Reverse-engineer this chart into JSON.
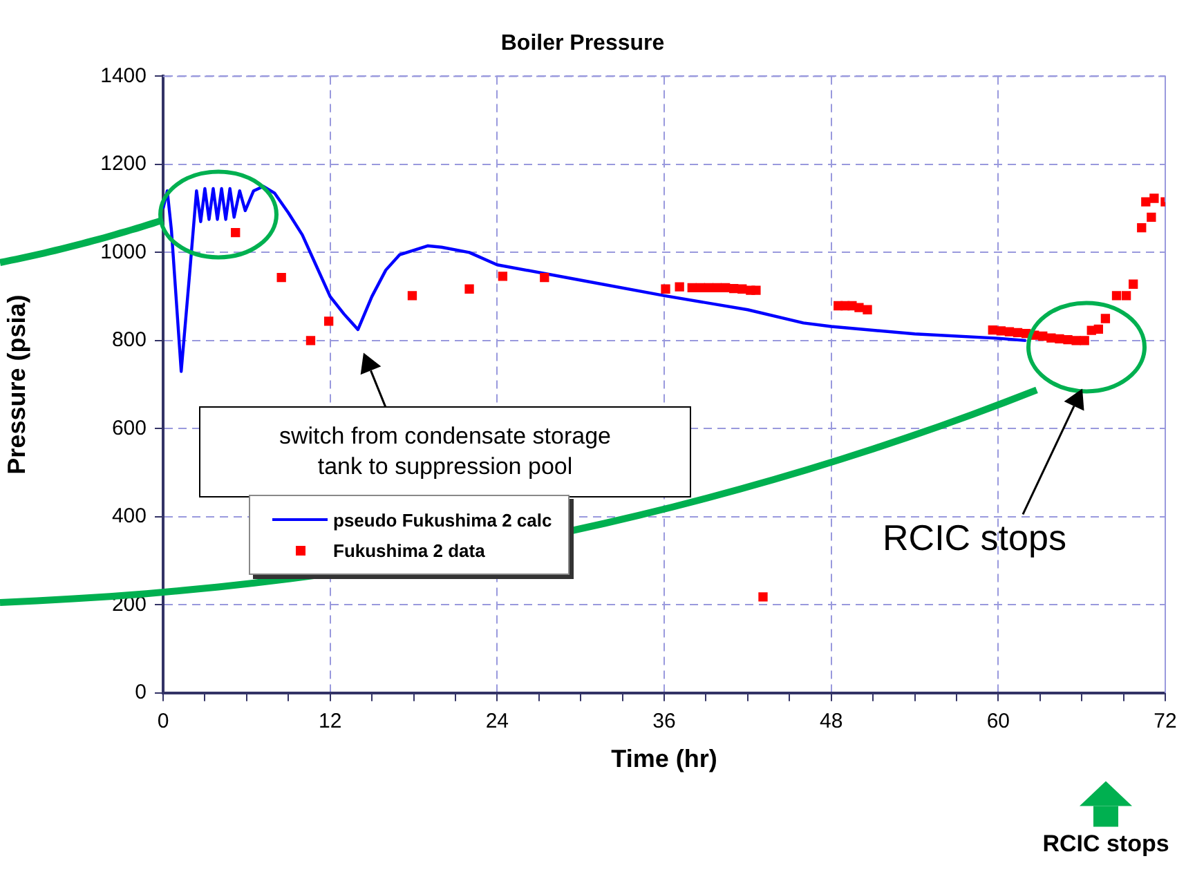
{
  "chart_data": {
    "type": "line",
    "title": "Boiler Pressure",
    "xlabel": "Time (hr)",
    "ylabel": "Pressure (psia)",
    "xlim": [
      0,
      72
    ],
    "xticks": [
      0,
      {
        "value": 3,
        "label": null
      },
      {
        "value": 6,
        "label": null
      },
      {
        "value": 9,
        "label": null
      },
      12,
      {
        "value": 15,
        "label": null
      },
      {
        "value": 18,
        "label": null
      },
      {
        "value": 21,
        "label": null
      },
      24,
      {
        "value": 27,
        "label": null
      },
      {
        "value": 30,
        "label": null
      },
      {
        "value": 33,
        "label": null
      },
      36,
      {
        "value": 39,
        "label": null
      },
      {
        "value": 42,
        "label": null
      },
      {
        "value": 45,
        "label": null
      },
      48,
      {
        "value": 51,
        "label": null
      },
      {
        "value": 54,
        "label": null
      },
      {
        "value": 57,
        "label": null
      },
      60,
      {
        "value": 63,
        "label": null
      },
      {
        "value": 66,
        "label": null
      },
      {
        "value": 69,
        "label": null
      },
      72
    ],
    "ylim": [
      0,
      1400
    ],
    "yticks": [
      0,
      200,
      400,
      600,
      800,
      1000,
      1200,
      1400
    ],
    "grid": true,
    "legend": "bottom left",
    "series": [
      {
        "type": "line",
        "name": "pseudo Fukushima 2 calc",
        "color": "#0000ff",
        "marker": "none",
        "x": [
          0,
          0.3,
          0.6,
          1.3,
          1.9,
          2.4,
          2.7,
          3.0,
          3.3,
          3.6,
          3.9,
          4.2,
          4.5,
          4.8,
          5.1,
          5.5,
          5.9,
          6.5,
          7.2,
          8,
          9,
          10,
          11,
          12,
          13,
          14,
          15,
          16,
          17,
          19,
          20,
          22,
          24,
          30,
          36,
          42,
          46,
          48,
          54,
          60,
          62
        ],
        "values": [
          1100,
          1140,
          1050,
          730,
          950,
          1140,
          1070,
          1145,
          1075,
          1145,
          1075,
          1145,
          1075,
          1145,
          1080,
          1140,
          1095,
          1140,
          1150,
          1135,
          1090,
          1040,
          970,
          900,
          860,
          825,
          900,
          960,
          995,
          1015,
          1012,
          1000,
          972,
          937,
          902,
          870,
          840,
          832,
          815,
          805,
          800
        ]
      },
      {
        "type": "scatter",
        "name": "Fukushima 2 data",
        "color": "#ff0000",
        "marker": "square",
        "x": [
          5.2,
          8.5,
          10.6,
          11.9,
          17.9,
          22,
          24.4,
          27.4,
          36.1,
          37.1,
          38,
          38.6,
          39.2,
          39.8,
          40.4,
          41,
          41.6,
          42.2,
          42.6,
          43.1,
          48.5,
          49,
          49.5,
          50,
          50.6,
          59.6,
          60.2,
          60.8,
          61.4,
          62,
          62.6,
          63.2,
          63.8,
          64.4,
          65,
          65.6,
          66.2,
          66.7,
          67.2,
          67.7,
          68.5,
          69.2,
          69.7,
          70.3,
          70.6,
          71,
          71.2,
          72
        ],
        "values": [
          1045,
          943,
          800,
          844,
          902,
          917,
          946,
          943,
          917,
          922,
          920,
          920,
          920,
          920,
          920,
          918,
          917,
          914,
          914,
          218,
          879,
          879,
          879,
          875,
          870,
          824,
          822,
          820,
          818,
          816,
          812,
          810,
          806,
          804,
          802,
          800,
          800,
          823,
          826,
          850,
          902,
          902,
          928,
          1056,
          1115,
          1080,
          1123,
          1115
        ]
      }
    ],
    "annotations": [
      "switch from condensate storage tank to suppression pool",
      "RCIC stops",
      "RCIC stops"
    ]
  }
}
